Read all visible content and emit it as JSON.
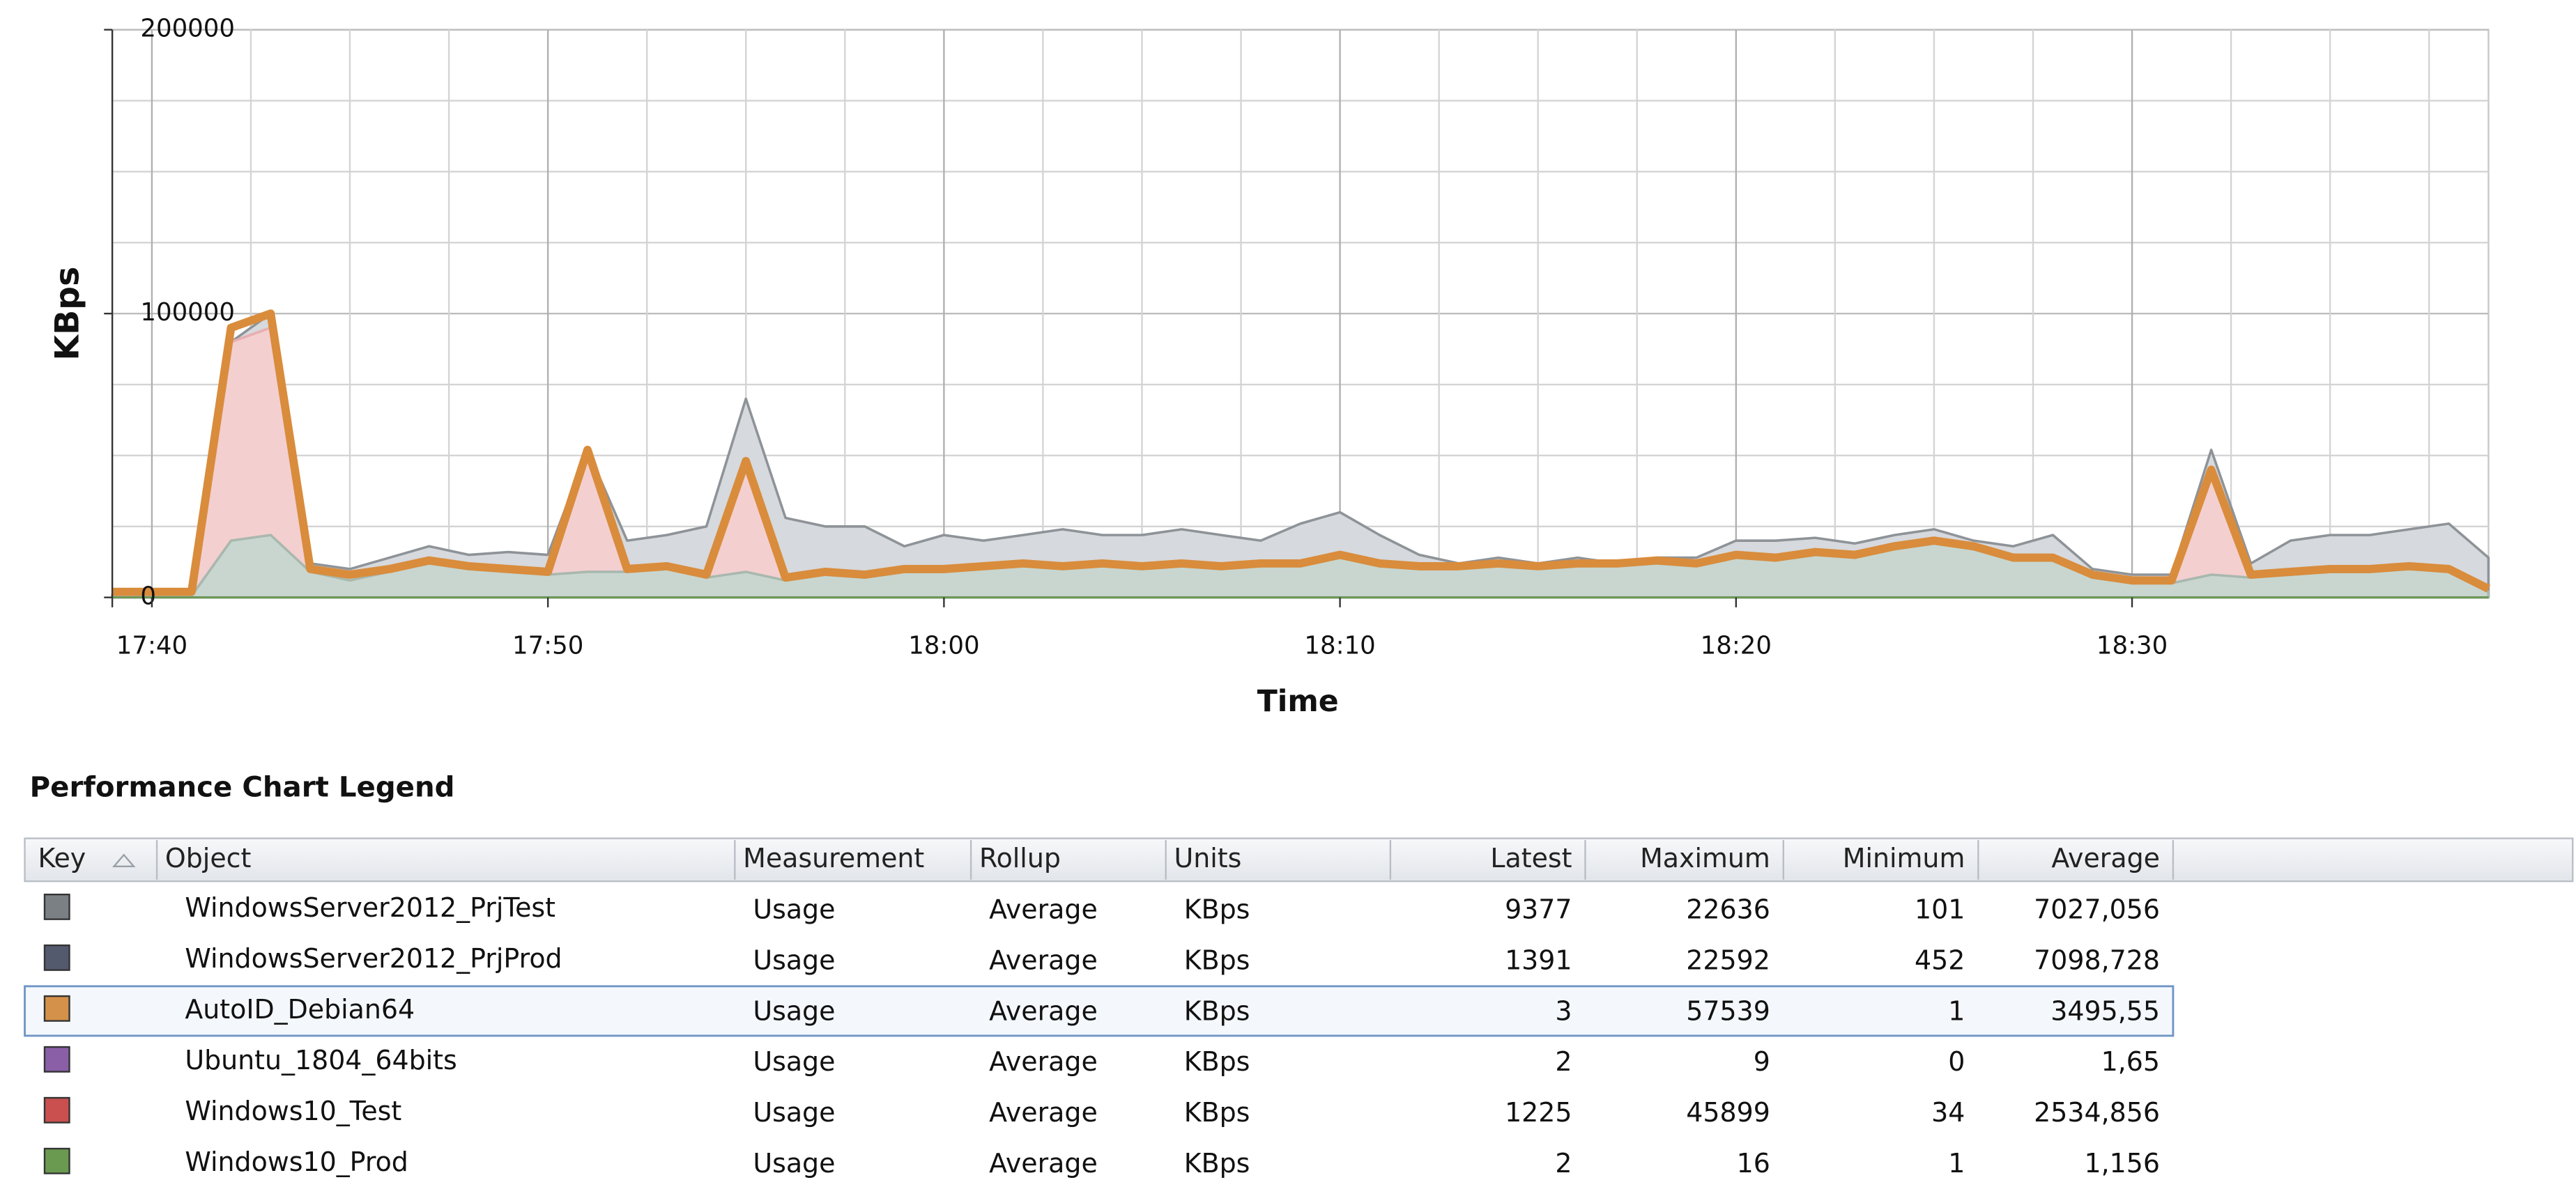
{
  "chart_data": {
    "type": "area",
    "y_label": "KBps",
    "x_label": "Time",
    "x": [
      "17:39",
      "17:40",
      "17:41",
      "17:42",
      "17:43",
      "17:44",
      "17:45",
      "17:46",
      "17:47",
      "17:48",
      "17:49",
      "17:50",
      "17:51",
      "17:52",
      "17:53",
      "17:54",
      "17:55",
      "17:56",
      "17:57",
      "17:58",
      "17:59",
      "18:00",
      "18:01",
      "18:02",
      "18:03",
      "18:04",
      "18:05",
      "18:06",
      "18:07",
      "18:08",
      "18:09",
      "18:10",
      "18:11",
      "18:12",
      "18:13",
      "18:14",
      "18:15",
      "18:16",
      "18:17",
      "18:18",
      "18:19",
      "18:20",
      "18:21",
      "18:22",
      "18:23",
      "18:24",
      "18:25",
      "18:26",
      "18:27",
      "18:28",
      "18:29",
      "18:30",
      "18:31",
      "18:32",
      "18:33",
      "18:34",
      "18:35",
      "18:36",
      "18:37",
      "18:38",
      "18:39"
    ],
    "xlim": [
      "17:39",
      "18:39"
    ],
    "xticks": [
      "17:40",
      "17:50",
      "18:00",
      "18:10",
      "18:20",
      "18:30"
    ],
    "minor_xticks": [
      "17:42:30",
      "17:45",
      "17:47:30",
      "17:52:30",
      "17:55",
      "17:57:30",
      "18:02:30",
      "18:05",
      "18:07:30",
      "18:12:30",
      "18:15",
      "18:17:30",
      "18:22:30",
      "18:25",
      "18:27:30",
      "18:32:30",
      "18:35",
      "18:37:30"
    ],
    "ylim": [
      0,
      200000
    ],
    "yticks": [
      0,
      100000,
      200000
    ],
    "minor_yticks": [
      25000,
      50000,
      75000,
      125000,
      150000,
      175000
    ],
    "grid": true,
    "series": [
      {
        "name": "WindowsServer2012_PrjTest",
        "color": "#7b8085",
        "style": "area",
        "fill": "#d6d9dd",
        "stroke": "#8e9398",
        "values": [
          1000,
          1000,
          1000,
          90000,
          100000,
          12000,
          10000,
          14000,
          18000,
          15000,
          16000,
          15000,
          52000,
          20000,
          22000,
          25000,
          70000,
          28000,
          25000,
          25000,
          18000,
          22000,
          20000,
          22000,
          24000,
          22000,
          22000,
          24000,
          22000,
          20000,
          26000,
          30000,
          22000,
          15000,
          12000,
          14000,
          12000,
          14000,
          12000,
          14000,
          14000,
          20000,
          20000,
          21000,
          19000,
          22000,
          24000,
          20000,
          18000,
          22000,
          10000,
          8000,
          8000,
          52000,
          12000,
          20000,
          22000,
          22000,
          24000,
          26000,
          14000
        ]
      },
      {
        "name": "WindowsServer2012_PrjProd",
        "color": "#545a6e",
        "style": "area",
        "fill": "#c8d6cf",
        "stroke": "#a9b8ae",
        "values": [
          500,
          500,
          500,
          20000,
          22000,
          9000,
          6000,
          9000,
          12000,
          10000,
          9000,
          8000,
          9000,
          9000,
          10000,
          7000,
          9000,
          6000,
          8000,
          7000,
          9000,
          9000,
          10000,
          11000,
          10000,
          11000,
          10000,
          11000,
          10000,
          11000,
          11000,
          14000,
          11000,
          10000,
          10000,
          11000,
          10000,
          11000,
          11000,
          12000,
          11000,
          14000,
          13000,
          15000,
          14000,
          17000,
          19000,
          17000,
          13000,
          13000,
          7000,
          5000,
          5000,
          8000,
          7000,
          8000,
          9000,
          9000,
          10000,
          9000,
          2000
        ]
      },
      {
        "name": "AutoID_Debian64",
        "color": "#d4914a",
        "style": "line",
        "stroke": "#d98c3c",
        "values": [
          2000,
          2000,
          2000,
          95000,
          100000,
          10000,
          8000,
          10000,
          13000,
          11000,
          10000,
          9000,
          52000,
          10000,
          11000,
          8000,
          48000,
          7000,
          9000,
          8000,
          10000,
          10000,
          11000,
          12000,
          11000,
          12000,
          11000,
          12000,
          11000,
          12000,
          12000,
          15000,
          12000,
          11000,
          11000,
          12000,
          11000,
          12000,
          12000,
          13000,
          12000,
          15000,
          14000,
          16000,
          15000,
          18000,
          20000,
          18000,
          14000,
          14000,
          8000,
          6000,
          6000,
          45000,
          8000,
          9000,
          10000,
          10000,
          11000,
          10000,
          3000
        ]
      },
      {
        "name": "Ubuntu_1804_64bits",
        "color": "#8a5fa8",
        "style": "line",
        "stroke": "#8a5fa8",
        "values": [
          2,
          2,
          2,
          2,
          2,
          2,
          2,
          2,
          2,
          2,
          2,
          2,
          2,
          2,
          2,
          2,
          2,
          2,
          2,
          2,
          2,
          2,
          2,
          2,
          2,
          2,
          2,
          2,
          2,
          2,
          2,
          2,
          2,
          2,
          2,
          2,
          2,
          2,
          2,
          2,
          2,
          2,
          2,
          2,
          2,
          2,
          2,
          2,
          2,
          2,
          2,
          2,
          2,
          2,
          2,
          2,
          2,
          2,
          2,
          2,
          2
        ]
      },
      {
        "name": "Windows10_Test",
        "color": "#c9504f",
        "style": "area",
        "fill": "#f3cfd0",
        "stroke": "#e9aeb0",
        "values": [
          1000,
          1000,
          1000,
          90000,
          95000,
          8000,
          6000,
          8000,
          11000,
          9000,
          8000,
          7000,
          50000,
          8000,
          9000,
          6000,
          46000,
          5000,
          7000,
          6000,
          8000,
          8000,
          9000,
          10000,
          9000,
          10000,
          9000,
          10000,
          9000,
          10000,
          10000,
          13000,
          10000,
          9000,
          9000,
          10000,
          9000,
          10000,
          10000,
          11000,
          10000,
          13000,
          12000,
          14000,
          13000,
          16000,
          18000,
          16000,
          12000,
          12000,
          6000,
          4000,
          4000,
          43000,
          6000,
          7000,
          8000,
          8000,
          9000,
          8000,
          2000
        ]
      },
      {
        "name": "Windows10_Prod",
        "color": "#6a9a50",
        "style": "line",
        "stroke": "#6a9a50",
        "values": [
          1,
          1,
          1,
          1,
          1,
          1,
          1,
          1,
          1,
          1,
          1,
          1,
          1,
          1,
          1,
          1,
          1,
          1,
          1,
          1,
          1,
          1,
          1,
          1,
          1,
          1,
          1,
          1,
          1,
          1,
          1,
          1,
          1,
          1,
          1,
          1,
          1,
          1,
          1,
          1,
          1,
          1,
          1,
          1,
          1,
          1,
          1,
          1,
          1,
          1,
          1,
          1,
          1,
          1,
          1,
          1,
          1,
          1,
          1,
          1,
          1
        ]
      }
    ]
  },
  "legend": {
    "title": "Performance Chart Legend",
    "columns": [
      "Key",
      "Object",
      "Measurement",
      "Rollup",
      "Units",
      "Latest",
      "Maximum",
      "Minimum",
      "Average"
    ],
    "selected_row": 2,
    "rows": [
      [
        "Usage",
        "Average",
        "KBps",
        "9377",
        "22636",
        "101",
        "7027,056"
      ],
      [
        "Usage",
        "Average",
        "KBps",
        "1391",
        "22592",
        "452",
        "7098,728"
      ],
      [
        "Usage",
        "Average",
        "KBps",
        "3",
        "57539",
        "1",
        "3495,55"
      ],
      [
        "Usage",
        "Average",
        "KBps",
        "2",
        "9",
        "0",
        "1,65"
      ],
      [
        "Usage",
        "Average",
        "KBps",
        "1225",
        "45899",
        "34",
        "2534,856"
      ],
      [
        "Usage",
        "Average",
        "KBps",
        "2",
        "16",
        "1",
        "1,156"
      ]
    ]
  }
}
